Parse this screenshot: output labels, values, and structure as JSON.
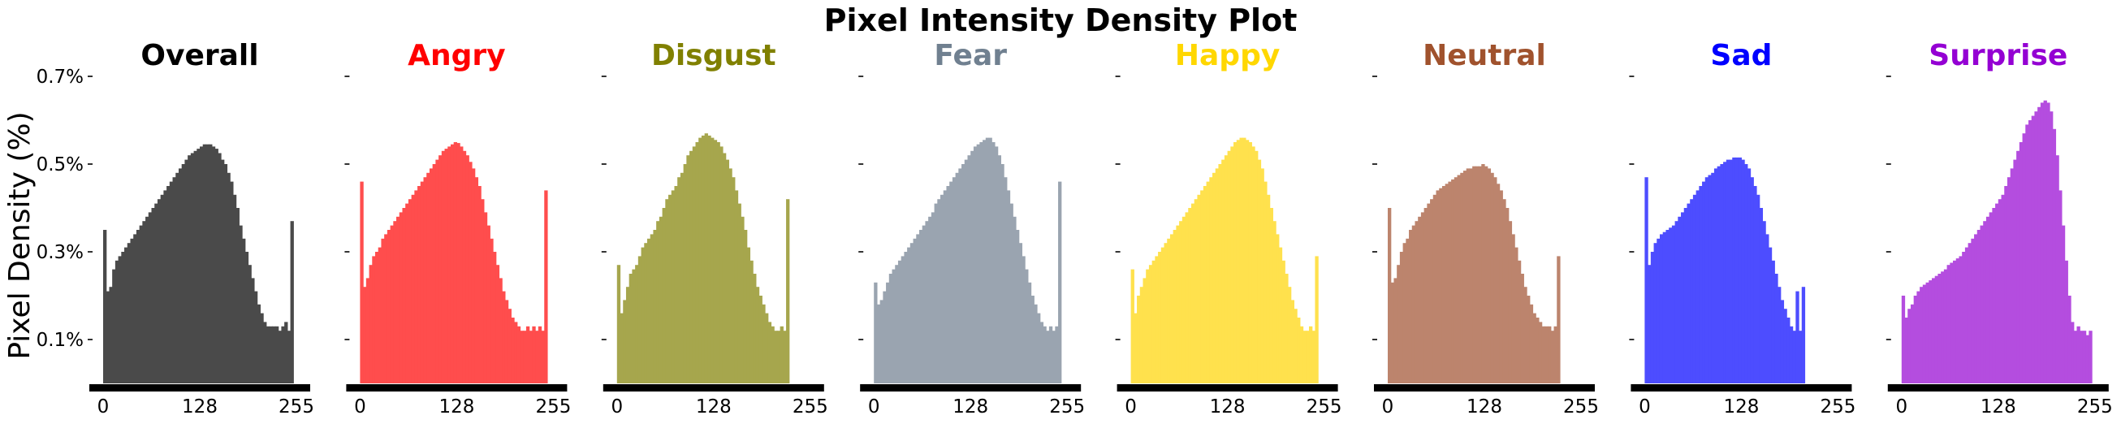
{
  "chart_data": {
    "type": "histogram",
    "title": "Pixel Intensity Density Plot",
    "ylabel": "Pixel Density (%)",
    "xlabel": "",
    "xlim": [
      0,
      255
    ],
    "ylim": [
      0,
      0.7
    ],
    "x_ticks": [
      0,
      128,
      255
    ],
    "y_ticks": [
      0.1,
      0.3,
      0.5,
      0.7
    ],
    "y_tick_labels": [
      "0.1%",
      "0.3%",
      "0.5%",
      "0.7%"
    ],
    "grid": false,
    "legend": "none",
    "bin_width": 4,
    "panels": [
      {
        "name": "Overall",
        "color": "#4a4a4a",
        "title_color": "#000000",
        "bins": [
          0,
          4,
          8,
          12,
          16,
          20,
          24,
          28,
          32,
          36,
          40,
          44,
          48,
          52,
          56,
          60,
          64,
          68,
          72,
          76,
          80,
          84,
          88,
          92,
          96,
          100,
          104,
          108,
          112,
          116,
          120,
          124,
          128,
          132,
          136,
          140,
          144,
          148,
          152,
          156,
          160,
          164,
          168,
          172,
          176,
          180,
          184,
          188,
          192,
          196,
          200,
          204,
          208,
          212,
          216,
          220,
          224,
          228,
          232,
          236,
          240,
          244,
          248,
          252
        ],
        "values": [
          0.35,
          0.21,
          0.22,
          0.26,
          0.28,
          0.29,
          0.3,
          0.31,
          0.32,
          0.33,
          0.34,
          0.35,
          0.36,
          0.37,
          0.38,
          0.39,
          0.4,
          0.41,
          0.42,
          0.43,
          0.44,
          0.45,
          0.46,
          0.47,
          0.48,
          0.49,
          0.5,
          0.51,
          0.52,
          0.525,
          0.53,
          0.535,
          0.54,
          0.545,
          0.545,
          0.545,
          0.54,
          0.535,
          0.525,
          0.51,
          0.5,
          0.48,
          0.46,
          0.43,
          0.4,
          0.36,
          0.33,
          0.3,
          0.27,
          0.24,
          0.21,
          0.18,
          0.16,
          0.14,
          0.13,
          0.13,
          0.13,
          0.13,
          0.12,
          0.13,
          0.14,
          0.12,
          0.37,
          0
        ]
      },
      {
        "name": "Angry",
        "color": "#ff4d4d",
        "title_color": "#ff0000",
        "bins": [
          0,
          4,
          8,
          12,
          16,
          20,
          24,
          28,
          32,
          36,
          40,
          44,
          48,
          52,
          56,
          60,
          64,
          68,
          72,
          76,
          80,
          84,
          88,
          92,
          96,
          100,
          104,
          108,
          112,
          116,
          120,
          124,
          128,
          132,
          136,
          140,
          144,
          148,
          152,
          156,
          160,
          164,
          168,
          172,
          176,
          180,
          184,
          188,
          192,
          196,
          200,
          204,
          208,
          212,
          216,
          220,
          224,
          228,
          232,
          236,
          240,
          244,
          248,
          252
        ],
        "values": [
          0.46,
          0.22,
          0.24,
          0.27,
          0.29,
          0.3,
          0.31,
          0.33,
          0.34,
          0.35,
          0.36,
          0.37,
          0.38,
          0.39,
          0.4,
          0.41,
          0.42,
          0.43,
          0.44,
          0.45,
          0.46,
          0.47,
          0.48,
          0.49,
          0.5,
          0.51,
          0.52,
          0.53,
          0.535,
          0.54,
          0.545,
          0.55,
          0.548,
          0.54,
          0.53,
          0.52,
          0.505,
          0.49,
          0.47,
          0.45,
          0.42,
          0.39,
          0.36,
          0.33,
          0.3,
          0.27,
          0.24,
          0.21,
          0.19,
          0.17,
          0.15,
          0.14,
          0.13,
          0.12,
          0.12,
          0.13,
          0.12,
          0.13,
          0.12,
          0.13,
          0.12,
          0.44,
          0,
          0
        ]
      },
      {
        "name": "Disgust",
        "color": "#a6a64d",
        "title_color": "#808000",
        "bins": [
          0,
          4,
          8,
          12,
          16,
          20,
          24,
          28,
          32,
          36,
          40,
          44,
          48,
          52,
          56,
          60,
          64,
          68,
          72,
          76,
          80,
          84,
          88,
          92,
          96,
          100,
          104,
          108,
          112,
          116,
          120,
          124,
          128,
          132,
          136,
          140,
          144,
          148,
          152,
          156,
          160,
          164,
          168,
          172,
          176,
          180,
          184,
          188,
          192,
          196,
          200,
          204,
          208,
          212,
          216,
          220,
          224,
          228,
          232,
          236,
          240,
          244,
          248,
          252
        ],
        "values": [
          0.27,
          0.16,
          0.19,
          0.22,
          0.25,
          0.26,
          0.27,
          0.29,
          0.31,
          0.32,
          0.33,
          0.34,
          0.35,
          0.37,
          0.38,
          0.4,
          0.42,
          0.43,
          0.44,
          0.45,
          0.47,
          0.48,
          0.5,
          0.52,
          0.53,
          0.54,
          0.55,
          0.56,
          0.565,
          0.57,
          0.565,
          0.56,
          0.555,
          0.55,
          0.54,
          0.525,
          0.51,
          0.49,
          0.47,
          0.44,
          0.41,
          0.38,
          0.35,
          0.31,
          0.28,
          0.25,
          0.22,
          0.2,
          0.18,
          0.16,
          0.14,
          0.13,
          0.12,
          0.12,
          0.13,
          0.12,
          0.42,
          0,
          0,
          0,
          0,
          0,
          0,
          0
        ]
      },
      {
        "name": "Fear",
        "color": "#9aa4b0",
        "title_color": "#708090",
        "bins": [
          0,
          4,
          8,
          12,
          16,
          20,
          24,
          28,
          32,
          36,
          40,
          44,
          48,
          52,
          56,
          60,
          64,
          68,
          72,
          76,
          80,
          84,
          88,
          92,
          96,
          100,
          104,
          108,
          112,
          116,
          120,
          124,
          128,
          132,
          136,
          140,
          144,
          148,
          152,
          156,
          160,
          164,
          168,
          172,
          176,
          180,
          184,
          188,
          192,
          196,
          200,
          204,
          208,
          212,
          216,
          220,
          224,
          228,
          232,
          236,
          240,
          244,
          248,
          252
        ],
        "values": [
          0.23,
          0.18,
          0.19,
          0.21,
          0.23,
          0.25,
          0.26,
          0.27,
          0.28,
          0.29,
          0.3,
          0.31,
          0.32,
          0.33,
          0.34,
          0.35,
          0.36,
          0.37,
          0.38,
          0.39,
          0.41,
          0.42,
          0.43,
          0.44,
          0.45,
          0.46,
          0.47,
          0.48,
          0.49,
          0.5,
          0.51,
          0.52,
          0.53,
          0.54,
          0.545,
          0.55,
          0.555,
          0.56,
          0.56,
          0.55,
          0.54,
          0.52,
          0.5,
          0.47,
          0.44,
          0.41,
          0.38,
          0.35,
          0.32,
          0.29,
          0.26,
          0.23,
          0.2,
          0.18,
          0.16,
          0.14,
          0.13,
          0.12,
          0.13,
          0.12,
          0.13,
          0.46,
          0,
          0
        ]
      },
      {
        "name": "Happy",
        "color": "#ffe14d",
        "title_color": "#ffd700",
        "bins": [
          0,
          4,
          8,
          12,
          16,
          20,
          24,
          28,
          32,
          36,
          40,
          44,
          48,
          52,
          56,
          60,
          64,
          68,
          72,
          76,
          80,
          84,
          88,
          92,
          96,
          100,
          104,
          108,
          112,
          116,
          120,
          124,
          128,
          132,
          136,
          140,
          144,
          148,
          152,
          156,
          160,
          164,
          168,
          172,
          176,
          180,
          184,
          188,
          192,
          196,
          200,
          204,
          208,
          212,
          216,
          220,
          224,
          228,
          232,
          236,
          240,
          244,
          248,
          252
        ],
        "values": [
          0.26,
          0.16,
          0.2,
          0.22,
          0.24,
          0.26,
          0.27,
          0.28,
          0.29,
          0.3,
          0.31,
          0.32,
          0.33,
          0.34,
          0.35,
          0.36,
          0.37,
          0.38,
          0.39,
          0.4,
          0.41,
          0.42,
          0.43,
          0.44,
          0.45,
          0.46,
          0.47,
          0.48,
          0.49,
          0.5,
          0.51,
          0.52,
          0.53,
          0.54,
          0.55,
          0.555,
          0.56,
          0.56,
          0.555,
          0.55,
          0.54,
          0.53,
          0.51,
          0.49,
          0.46,
          0.43,
          0.4,
          0.37,
          0.34,
          0.31,
          0.28,
          0.25,
          0.22,
          0.19,
          0.17,
          0.15,
          0.13,
          0.12,
          0.12,
          0.13,
          0.12,
          0.29,
          0,
          0
        ]
      },
      {
        "name": "Neutral",
        "color": "#bc846d",
        "title_color": "#a0522d",
        "bins": [
          0,
          4,
          8,
          12,
          16,
          20,
          24,
          28,
          32,
          36,
          40,
          44,
          48,
          52,
          56,
          60,
          64,
          68,
          72,
          76,
          80,
          84,
          88,
          92,
          96,
          100,
          104,
          108,
          112,
          116,
          120,
          124,
          128,
          132,
          136,
          140,
          144,
          148,
          152,
          156,
          160,
          164,
          168,
          172,
          176,
          180,
          184,
          188,
          192,
          196,
          200,
          204,
          208,
          212,
          216,
          220,
          224,
          228,
          232,
          236,
          240,
          244,
          248,
          252
        ],
        "values": [
          0.4,
          0.23,
          0.24,
          0.27,
          0.3,
          0.32,
          0.33,
          0.35,
          0.36,
          0.37,
          0.38,
          0.39,
          0.4,
          0.41,
          0.42,
          0.43,
          0.44,
          0.445,
          0.45,
          0.455,
          0.46,
          0.465,
          0.47,
          0.475,
          0.48,
          0.485,
          0.49,
          0.49,
          0.495,
          0.495,
          0.495,
          0.5,
          0.495,
          0.49,
          0.48,
          0.47,
          0.455,
          0.44,
          0.42,
          0.4,
          0.37,
          0.34,
          0.31,
          0.28,
          0.25,
          0.22,
          0.2,
          0.18,
          0.16,
          0.15,
          0.14,
          0.13,
          0.13,
          0.13,
          0.12,
          0.13,
          0.29,
          0,
          0,
          0,
          0,
          0,
          0,
          0
        ]
      },
      {
        "name": "Sad",
        "color": "#4d4dff",
        "title_color": "#0000ff",
        "bins": [
          0,
          4,
          8,
          12,
          16,
          20,
          24,
          28,
          32,
          36,
          40,
          44,
          48,
          52,
          56,
          60,
          64,
          68,
          72,
          76,
          80,
          84,
          88,
          92,
          96,
          100,
          104,
          108,
          112,
          116,
          120,
          124,
          128,
          132,
          136,
          140,
          144,
          148,
          152,
          156,
          160,
          164,
          168,
          172,
          176,
          180,
          184,
          188,
          192,
          196,
          200,
          204,
          208,
          212,
          216,
          220,
          224,
          228,
          232,
          236,
          240,
          244,
          248,
          252
        ],
        "values": [
          0.47,
          0.27,
          0.3,
          0.32,
          0.33,
          0.34,
          0.345,
          0.35,
          0.355,
          0.36,
          0.37,
          0.38,
          0.39,
          0.4,
          0.41,
          0.42,
          0.43,
          0.44,
          0.45,
          0.46,
          0.47,
          0.475,
          0.48,
          0.49,
          0.495,
          0.5,
          0.505,
          0.51,
          0.51,
          0.515,
          0.515,
          0.515,
          0.51,
          0.5,
          0.49,
          0.47,
          0.45,
          0.43,
          0.4,
          0.37,
          0.34,
          0.31,
          0.28,
          0.25,
          0.22,
          0.19,
          0.17,
          0.15,
          0.13,
          0.12,
          0.21,
          0.12,
          0.22,
          0,
          0,
          0,
          0,
          0,
          0,
          0,
          0,
          0,
          0,
          0
        ]
      },
      {
        "name": "Surprise",
        "color": "#b44ddf",
        "title_color": "#9400d3",
        "bins": [
          0,
          4,
          8,
          12,
          16,
          20,
          24,
          28,
          32,
          36,
          40,
          44,
          48,
          52,
          56,
          60,
          64,
          68,
          72,
          76,
          80,
          84,
          88,
          92,
          96,
          100,
          104,
          108,
          112,
          116,
          120,
          124,
          128,
          132,
          136,
          140,
          144,
          148,
          152,
          156,
          160,
          164,
          168,
          172,
          176,
          180,
          184,
          188,
          192,
          196,
          200,
          204,
          208,
          212,
          216,
          220,
          224,
          228,
          232,
          236,
          240,
          244,
          248,
          252
        ],
        "values": [
          0.2,
          0.15,
          0.17,
          0.18,
          0.2,
          0.21,
          0.22,
          0.225,
          0.23,
          0.235,
          0.24,
          0.245,
          0.25,
          0.255,
          0.26,
          0.27,
          0.275,
          0.28,
          0.285,
          0.29,
          0.3,
          0.31,
          0.32,
          0.33,
          0.34,
          0.35,
          0.36,
          0.37,
          0.38,
          0.39,
          0.4,
          0.41,
          0.42,
          0.43,
          0.45,
          0.47,
          0.49,
          0.51,
          0.53,
          0.55,
          0.57,
          0.59,
          0.6,
          0.61,
          0.62,
          0.63,
          0.64,
          0.645,
          0.64,
          0.62,
          0.58,
          0.52,
          0.44,
          0.36,
          0.28,
          0.2,
          0.14,
          0.12,
          0.13,
          0.12,
          0.12,
          0.11,
          0.12,
          0
        ]
      }
    ]
  }
}
